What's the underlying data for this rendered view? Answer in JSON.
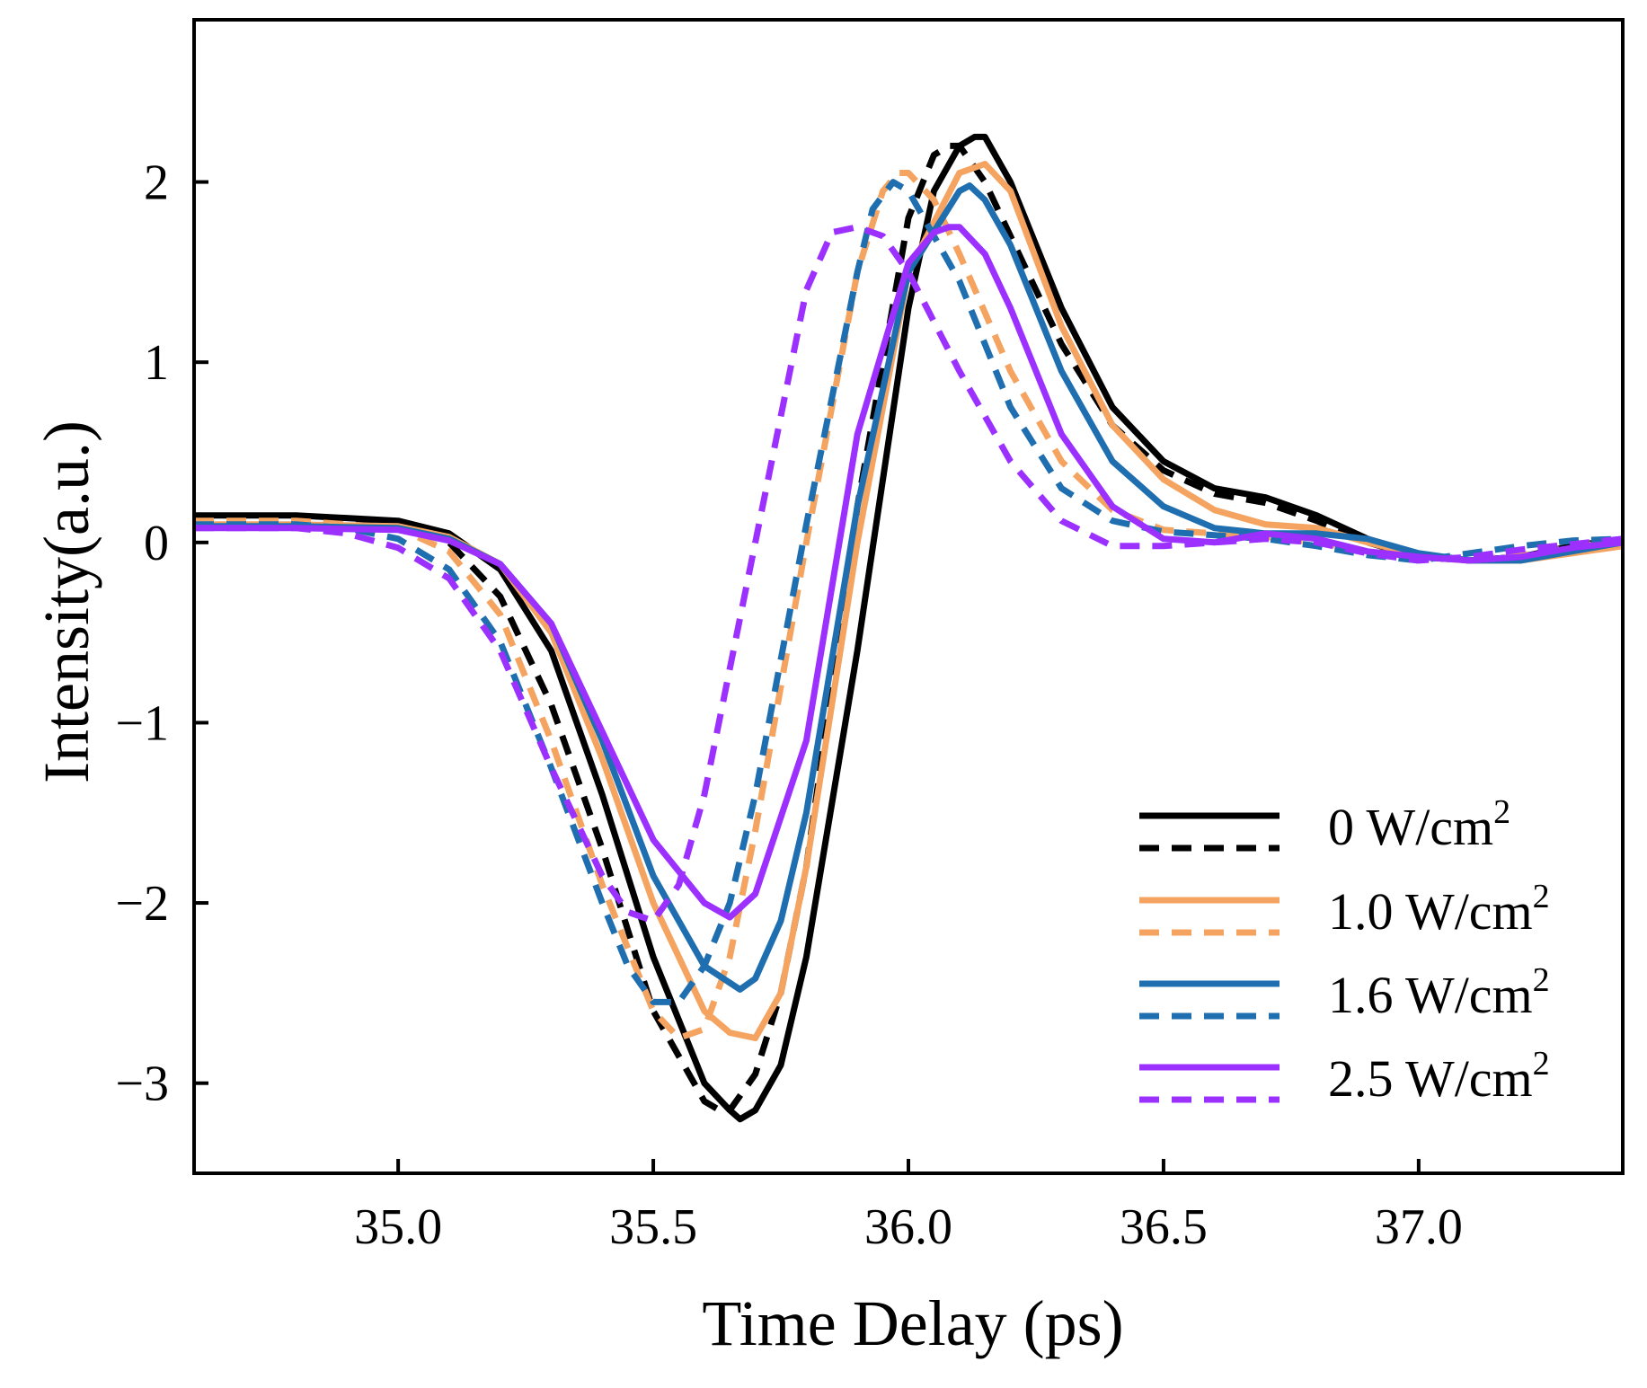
{
  "chart_data": {
    "type": "line",
    "title": "",
    "xlabel": "Time Delay (ps)",
    "ylabel": "Intensity(a.u.)",
    "xlim": [
      34.6,
      37.4
    ],
    "ylim": [
      -3.5,
      2.9
    ],
    "xticks": [
      35.0,
      35.5,
      36.0,
      36.5,
      37.0
    ],
    "xtick_labels": [
      "35.0",
      "35.5",
      "36.0",
      "36.5",
      "37.0"
    ],
    "yticks": [
      -3,
      -2,
      -1,
      0,
      1,
      2
    ],
    "ytick_labels": [
      "−3",
      "−2",
      "−1",
      "0",
      "1",
      "2"
    ],
    "grid": false,
    "legend_position": "bottom-right",
    "legend": [
      {
        "label": "0 W/cm",
        "sup": "2",
        "color": "#000000"
      },
      {
        "label": "1.0 W/cm",
        "sup": "2",
        "color": "#F4A460"
      },
      {
        "label": "1.6 W/cm",
        "sup": "2",
        "color": "#1F6FB0"
      },
      {
        "label": "2.5 W/cm",
        "sup": "2",
        "color": "#9B30FF"
      }
    ],
    "series": [
      {
        "name": "0 W/cm2 (solid)",
        "color": "#000000",
        "style": "solid",
        "x": [
          34.6,
          34.8,
          35.0,
          35.1,
          35.2,
          35.3,
          35.4,
          35.5,
          35.6,
          35.65,
          35.67,
          35.7,
          35.75,
          35.8,
          35.9,
          36.0,
          36.05,
          36.1,
          36.13,
          36.15,
          36.2,
          36.3,
          36.4,
          36.5,
          36.6,
          36.7,
          36.8,
          36.9,
          37.0,
          37.1,
          37.2,
          37.3,
          37.4
        ],
        "y": [
          0.15,
          0.15,
          0.12,
          0.05,
          -0.15,
          -0.6,
          -1.4,
          -2.3,
          -3.0,
          -3.15,
          -3.2,
          -3.15,
          -2.9,
          -2.3,
          -0.6,
          1.3,
          1.95,
          2.2,
          2.25,
          2.25,
          2.0,
          1.3,
          0.75,
          0.45,
          0.3,
          0.25,
          0.15,
          0.02,
          -0.07,
          -0.1,
          -0.08,
          -0.02,
          0.02
        ]
      },
      {
        "name": "0 W/cm2 (dashed)",
        "color": "#000000",
        "style": "dashed",
        "x": [
          34.6,
          34.8,
          35.0,
          35.1,
          35.2,
          35.3,
          35.4,
          35.5,
          35.6,
          35.63,
          35.65,
          35.7,
          35.75,
          35.8,
          35.9,
          36.0,
          36.05,
          36.08,
          36.1,
          36.15,
          36.2,
          36.3,
          36.4,
          36.5,
          36.6,
          36.7,
          36.8,
          36.9,
          37.0,
          37.1,
          37.2,
          37.3,
          37.4
        ],
        "y": [
          0.13,
          0.13,
          0.1,
          0.0,
          -0.3,
          -0.9,
          -1.7,
          -2.6,
          -3.1,
          -3.15,
          -3.15,
          -2.95,
          -2.5,
          -1.8,
          0.2,
          1.8,
          2.15,
          2.2,
          2.2,
          2.0,
          1.7,
          1.1,
          0.65,
          0.4,
          0.27,
          0.22,
          0.12,
          0.0,
          -0.08,
          -0.1,
          -0.08,
          -0.03,
          0.02
        ]
      },
      {
        "name": "1.0 W/cm2 (solid)",
        "color": "#F4A460",
        "style": "solid",
        "x": [
          34.6,
          34.8,
          35.0,
          35.1,
          35.2,
          35.3,
          35.4,
          35.5,
          35.6,
          35.65,
          35.7,
          35.75,
          35.8,
          35.9,
          36.0,
          36.1,
          36.15,
          36.2,
          36.3,
          36.4,
          36.5,
          36.6,
          36.7,
          36.8,
          36.9,
          37.0,
          37.1,
          37.2,
          37.3,
          37.4
        ],
        "y": [
          0.1,
          0.1,
          0.09,
          0.03,
          -0.12,
          -0.5,
          -1.2,
          -2.0,
          -2.6,
          -2.72,
          -2.75,
          -2.5,
          -1.8,
          0.0,
          1.5,
          2.05,
          2.1,
          1.95,
          1.2,
          0.65,
          0.35,
          0.18,
          0.1,
          0.08,
          0.0,
          -0.07,
          -0.1,
          -0.1,
          -0.06,
          -0.02
        ]
      },
      {
        "name": "1.0 W/cm2 (dashed)",
        "color": "#F4A460",
        "style": "dashed",
        "x": [
          34.6,
          34.8,
          35.0,
          35.1,
          35.2,
          35.3,
          35.4,
          35.5,
          35.55,
          35.6,
          35.65,
          35.7,
          35.8,
          35.9,
          35.95,
          35.98,
          36.0,
          36.05,
          36.1,
          36.2,
          36.3,
          36.4,
          36.5,
          36.6,
          36.7,
          36.8,
          36.9,
          37.0,
          37.1,
          37.2,
          37.3,
          37.4
        ],
        "y": [
          0.12,
          0.12,
          0.08,
          -0.05,
          -0.4,
          -1.1,
          -1.9,
          -2.6,
          -2.75,
          -2.7,
          -2.3,
          -1.6,
          0.0,
          1.5,
          1.95,
          2.05,
          2.05,
          1.9,
          1.6,
          0.95,
          0.45,
          0.18,
          0.07,
          0.05,
          0.03,
          0.0,
          -0.05,
          -0.08,
          -0.1,
          -0.07,
          -0.03,
          0.02
        ]
      },
      {
        "name": "1.6 W/cm2 (solid)",
        "color": "#1F6FB0",
        "style": "solid",
        "x": [
          34.6,
          34.8,
          35.0,
          35.1,
          35.2,
          35.3,
          35.4,
          35.5,
          35.6,
          35.67,
          35.7,
          35.75,
          35.8,
          35.9,
          36.0,
          36.1,
          36.12,
          36.15,
          36.2,
          36.3,
          36.4,
          36.5,
          36.6,
          36.7,
          36.8,
          36.9,
          37.0,
          37.1,
          37.2,
          37.3,
          37.4
        ],
        "y": [
          0.09,
          0.09,
          0.08,
          0.02,
          -0.12,
          -0.45,
          -1.1,
          -1.85,
          -2.35,
          -2.48,
          -2.42,
          -2.1,
          -1.5,
          0.2,
          1.5,
          1.95,
          1.98,
          1.9,
          1.65,
          0.95,
          0.45,
          0.2,
          0.08,
          0.05,
          0.05,
          0.02,
          -0.06,
          -0.1,
          -0.1,
          -0.05,
          0.0
        ]
      },
      {
        "name": "1.6 W/cm2 (dashed)",
        "color": "#1F6FB0",
        "style": "dashed",
        "x": [
          34.6,
          34.8,
          34.9,
          35.0,
          35.1,
          35.2,
          35.3,
          35.4,
          35.45,
          35.5,
          35.55,
          35.6,
          35.65,
          35.7,
          35.8,
          35.9,
          35.93,
          35.97,
          36.0,
          36.1,
          36.2,
          36.3,
          36.4,
          36.5,
          36.6,
          36.7,
          36.8,
          36.9,
          37.0,
          37.1,
          37.2,
          37.3,
          37.4
        ],
        "y": [
          0.1,
          0.1,
          0.08,
          0.02,
          -0.15,
          -0.55,
          -1.25,
          -2.0,
          -2.35,
          -2.55,
          -2.55,
          -2.35,
          -2.0,
          -1.4,
          0.1,
          1.5,
          1.85,
          2.0,
          1.95,
          1.45,
          0.75,
          0.3,
          0.12,
          0.06,
          0.04,
          0.02,
          -0.02,
          -0.07,
          -0.1,
          -0.06,
          -0.02,
          0.01,
          0.02
        ]
      },
      {
        "name": "2.5 W/cm2 (solid)",
        "color": "#9B30FF",
        "style": "solid",
        "x": [
          34.6,
          34.8,
          35.0,
          35.1,
          35.2,
          35.3,
          35.4,
          35.5,
          35.6,
          35.65,
          35.7,
          35.8,
          35.9,
          36.0,
          36.05,
          36.08,
          36.1,
          36.15,
          36.2,
          36.3,
          36.4,
          36.5,
          36.6,
          36.7,
          36.8,
          36.9,
          37.0,
          37.1,
          37.2,
          37.3,
          37.4
        ],
        "y": [
          0.08,
          0.08,
          0.07,
          0.01,
          -0.12,
          -0.45,
          -1.05,
          -1.65,
          -2.0,
          -2.08,
          -1.95,
          -1.1,
          0.6,
          1.55,
          1.72,
          1.75,
          1.75,
          1.6,
          1.3,
          0.6,
          0.2,
          0.02,
          0.0,
          0.05,
          0.02,
          -0.05,
          -0.08,
          -0.1,
          -0.08,
          -0.03,
          0.0
        ]
      },
      {
        "name": "2.5 W/cm2 (dashed)",
        "color": "#9B30FF",
        "style": "dashed",
        "x": [
          34.6,
          34.8,
          34.9,
          35.0,
          35.1,
          35.2,
          35.3,
          35.4,
          35.45,
          35.5,
          35.55,
          35.6,
          35.7,
          35.8,
          35.85,
          35.9,
          35.95,
          36.0,
          36.1,
          36.2,
          36.3,
          36.4,
          36.5,
          36.6,
          36.7,
          36.8,
          36.9,
          37.0,
          37.1,
          37.2,
          37.3,
          37.4
        ],
        "y": [
          0.08,
          0.08,
          0.05,
          -0.03,
          -0.2,
          -0.6,
          -1.25,
          -1.85,
          -2.05,
          -2.1,
          -1.9,
          -1.4,
          0.0,
          1.4,
          1.72,
          1.75,
          1.7,
          1.5,
          0.95,
          0.45,
          0.12,
          -0.02,
          -0.02,
          0.0,
          0.02,
          0.0,
          -0.06,
          -0.1,
          -0.08,
          -0.04,
          -0.01,
          0.02
        ]
      }
    ]
  }
}
